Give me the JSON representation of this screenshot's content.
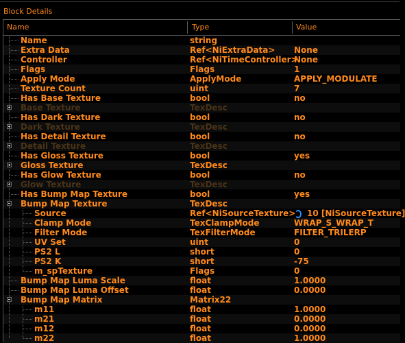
{
  "window": {
    "title": "Block Details"
  },
  "columns": {
    "name": "Name",
    "type": "Type",
    "value": "Value"
  },
  "rows": [
    {
      "depth": 0,
      "expander": "",
      "dim": false,
      "name": "Name",
      "type": "string",
      "value": ""
    },
    {
      "depth": 0,
      "expander": "",
      "dim": false,
      "name": "Extra Data",
      "type": "Ref<NiExtraData>",
      "value": "None"
    },
    {
      "depth": 0,
      "expander": "",
      "dim": false,
      "name": "Controller",
      "type": "Ref<NiTimeController>",
      "value": "None"
    },
    {
      "depth": 0,
      "expander": "",
      "dim": false,
      "name": "Flags",
      "type": "Flags",
      "value": "1"
    },
    {
      "depth": 0,
      "expander": "",
      "dim": false,
      "name": "Apply Mode",
      "type": "ApplyMode",
      "value": "APPLY_MODULATE"
    },
    {
      "depth": 0,
      "expander": "",
      "dim": false,
      "name": "Texture Count",
      "type": "uint",
      "value": "7"
    },
    {
      "depth": 0,
      "expander": "",
      "dim": false,
      "name": "Has Base Texture",
      "type": "bool",
      "value": "no"
    },
    {
      "depth": 0,
      "expander": "plus",
      "dim": true,
      "name": "Base Texture",
      "type": "TexDesc",
      "value": ""
    },
    {
      "depth": 0,
      "expander": "",
      "dim": false,
      "name": "Has Dark Texture",
      "type": "bool",
      "value": "no"
    },
    {
      "depth": 0,
      "expander": "plus",
      "dim": true,
      "name": "Dark Texture",
      "type": "TexDesc",
      "value": ""
    },
    {
      "depth": 0,
      "expander": "",
      "dim": false,
      "name": "Has Detail Texture",
      "type": "bool",
      "value": "no"
    },
    {
      "depth": 0,
      "expander": "plus",
      "dim": true,
      "name": "Detail Texture",
      "type": "TexDesc",
      "value": ""
    },
    {
      "depth": 0,
      "expander": "",
      "dim": false,
      "name": "Has Gloss Texture",
      "type": "bool",
      "value": "yes"
    },
    {
      "depth": 0,
      "expander": "plus",
      "dim": false,
      "name": "Gloss Texture",
      "type": "TexDesc",
      "value": ""
    },
    {
      "depth": 0,
      "expander": "",
      "dim": false,
      "name": "Has Glow Texture",
      "type": "bool",
      "value": "no"
    },
    {
      "depth": 0,
      "expander": "plus",
      "dim": true,
      "name": "Glow Texture",
      "type": "TexDesc",
      "value": ""
    },
    {
      "depth": 0,
      "expander": "",
      "dim": false,
      "name": "Has Bump Map Texture",
      "type": "bool",
      "value": "yes"
    },
    {
      "depth": 0,
      "expander": "minus",
      "dim": false,
      "name": "Bump Map Texture",
      "type": "TexDesc",
      "value": ""
    },
    {
      "depth": 1,
      "expander": "",
      "dim": false,
      "name": "Source",
      "type": "Ref<NiSourceTexture>",
      "value": "10 [NiSourceTexture]",
      "icon": "link-icon"
    },
    {
      "depth": 1,
      "expander": "",
      "dim": false,
      "name": "Clamp Mode",
      "type": "TexClampMode",
      "value": "WRAP_S_WRAP_T"
    },
    {
      "depth": 1,
      "expander": "",
      "dim": false,
      "name": "Filter Mode",
      "type": "TexFilterMode",
      "value": "FILTER_TRILERP"
    },
    {
      "depth": 1,
      "expander": "",
      "dim": false,
      "name": "UV Set",
      "type": "uint",
      "value": "0"
    },
    {
      "depth": 1,
      "expander": "",
      "dim": false,
      "name": "PS2 L",
      "type": "short",
      "value": "0"
    },
    {
      "depth": 1,
      "expander": "",
      "dim": false,
      "name": "PS2 K",
      "type": "short",
      "value": "-75"
    },
    {
      "depth": 1,
      "expander": "",
      "dim": false,
      "name": "m_spTexture",
      "type": "Flags",
      "value": "0"
    },
    {
      "depth": 0,
      "expander": "",
      "dim": false,
      "name": "Bump Map Luma Scale",
      "type": "float",
      "value": "1.0000"
    },
    {
      "depth": 0,
      "expander": "",
      "dim": false,
      "name": "Bump Map Luma Offset",
      "type": "float",
      "value": "0.0000"
    },
    {
      "depth": 0,
      "expander": "minus",
      "dim": false,
      "name": "Bump Map Matrix",
      "type": "Matrix22",
      "value": ""
    },
    {
      "depth": 1,
      "expander": "",
      "dim": false,
      "name": "m11",
      "type": "float",
      "value": "1.0000"
    },
    {
      "depth": 1,
      "expander": "",
      "dim": false,
      "name": "m21",
      "type": "float",
      "value": "0.0000"
    },
    {
      "depth": 1,
      "expander": "",
      "dim": false,
      "name": "m12",
      "type": "float",
      "value": "0.0000"
    },
    {
      "depth": 1,
      "expander": "",
      "dim": false,
      "name": "m22",
      "type": "float",
      "value": "1.0000"
    }
  ]
}
